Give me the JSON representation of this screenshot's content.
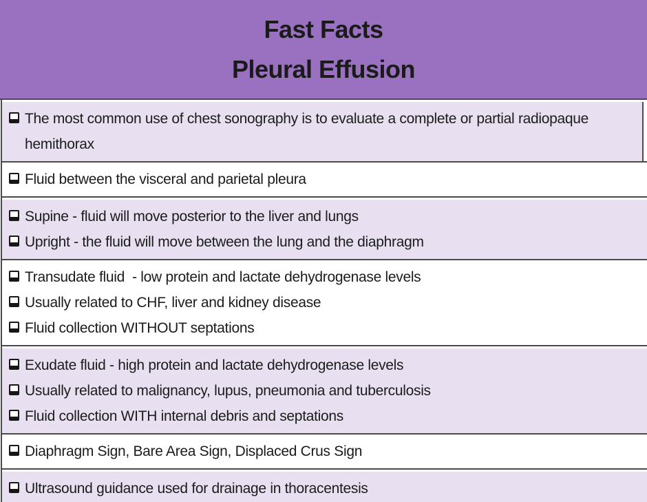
{
  "header": {
    "title_line1": "Fast Facts",
    "title_line2": "Pleural Effusion"
  },
  "sections": [
    {
      "shade": "lavender",
      "items": [
        "The most common use of chest sonography is to evaluate a complete or partial radiopaque hemithorax"
      ]
    },
    {
      "shade": "white",
      "items": [
        "Fluid between the visceral and parietal pleura"
      ]
    },
    {
      "shade": "lavender",
      "items": [
        "Supine - fluid will move posterior to the liver and lungs",
        "Upright - the fluid will move between the lung and the diaphragm"
      ]
    },
    {
      "shade": "white",
      "items": [
        "Transudate fluid  - low protein and lactate dehydrogenase levels",
        "Usually related to CHF, liver and kidney disease",
        "Fluid collection WITHOUT septations"
      ]
    },
    {
      "shade": "lavender",
      "items": [
        "Exudate fluid - high protein and lactate dehydrogenase levels",
        "Usually related to malignancy, lupus, pneumonia and tuberculosis",
        "Fluid collection WITH internal debris and septations"
      ]
    },
    {
      "shade": "white",
      "items": [
        "Diaphragm Sign, Bare Area Sign, Displaced Crus Sign"
      ]
    },
    {
      "shade": "lavender",
      "items": [
        "Ultrasound guidance used for drainage in thoracentesis"
      ]
    }
  ],
  "colors": {
    "header_purple": "#9a70c0",
    "row_lavender": "#e8e0f1",
    "row_white": "#ffffff",
    "border": "#4a4a4a",
    "text": "#1b1b1b",
    "bullet": "#161616"
  },
  "bullet_icon": "checkbox-square"
}
